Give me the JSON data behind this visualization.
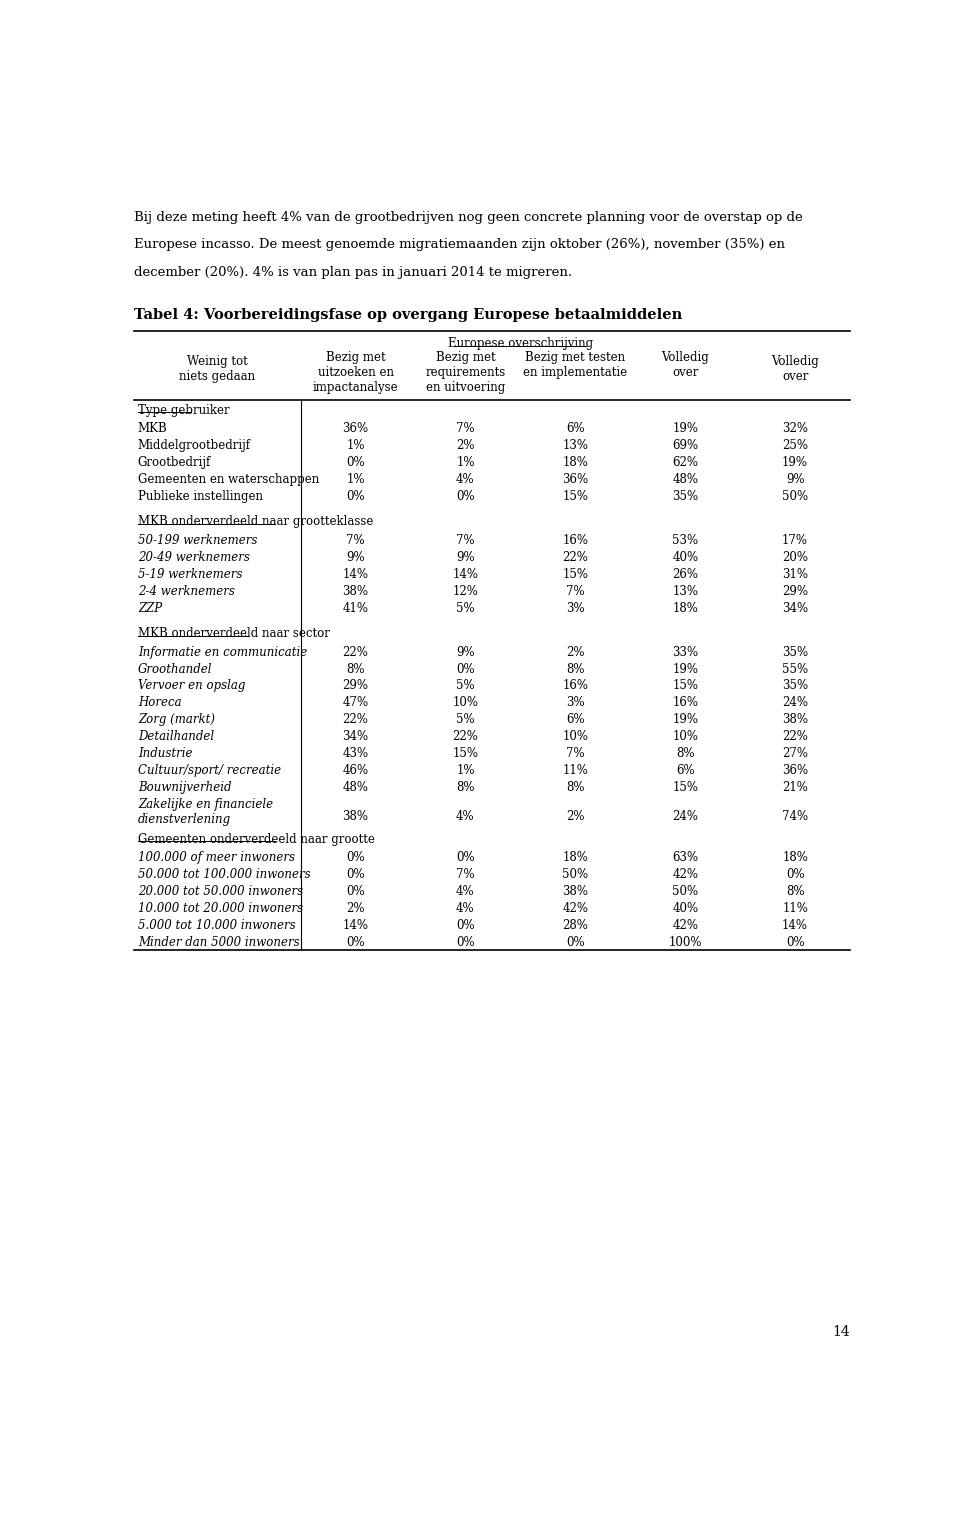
{
  "intro_text": [
    "Bij deze meting heeft 4% van de grootbedrijven nog geen concrete planning voor de overstap op de",
    "Europese incasso. De meest genoemde migratiemaanden zijn oktober (26%), november (35%) en",
    "december (20%). 4% is van plan pas in januari 2014 te migreren."
  ],
  "title": "Tabel 4: Voorbereidingsfase op overgang Europese betaalmiddelen",
  "col_headers": [
    "Weinig tot\nniets gedaan",
    "Bezig met\nuitzoeken en\nimpactanalyse",
    "Bezig met\nrequirements\nen uitvoering",
    "Bezig met testen\nen implementatie",
    "Volledig\nover"
  ],
  "subheader": "Europese overschrijving",
  "sections": [
    {
      "section_label": "Type gebruiker",
      "italic_label": false,
      "rows": [
        {
          "label": "MKB",
          "italic": false,
          "multiline": false,
          "values": [
            "36%",
            "7%",
            "6%",
            "19%",
            "32%"
          ]
        },
        {
          "label": "Middelgrootbedrijf",
          "italic": false,
          "multiline": false,
          "values": [
            "1%",
            "2%",
            "13%",
            "69%",
            "25%"
          ]
        },
        {
          "label": "Grootbedrijf",
          "italic": false,
          "multiline": false,
          "values": [
            "0%",
            "1%",
            "18%",
            "62%",
            "19%"
          ]
        },
        {
          "label": "Gemeenten en waterschappen",
          "italic": false,
          "multiline": false,
          "values": [
            "1%",
            "4%",
            "36%",
            "48%",
            "9%"
          ]
        },
        {
          "label": "Publieke instellingen",
          "italic": false,
          "multiline": false,
          "values": [
            "0%",
            "0%",
            "15%",
            "35%",
            "50%"
          ]
        }
      ]
    },
    {
      "section_label": "MKB onderverdeeld naar grootteklasse",
      "italic_label": false,
      "rows": [
        {
          "label": "50-199 werknemers",
          "italic": true,
          "multiline": false,
          "values": [
            "7%",
            "7%",
            "16%",
            "53%",
            "17%"
          ]
        },
        {
          "label": "20-49 werknemers",
          "italic": true,
          "multiline": false,
          "values": [
            "9%",
            "9%",
            "22%",
            "40%",
            "20%"
          ]
        },
        {
          "label": "5-19 werknemers",
          "italic": true,
          "multiline": false,
          "values": [
            "14%",
            "14%",
            "15%",
            "26%",
            "31%"
          ]
        },
        {
          "label": "2-4 werknemers",
          "italic": true,
          "multiline": false,
          "values": [
            "38%",
            "12%",
            "7%",
            "13%",
            "29%"
          ]
        },
        {
          "label": "ZZP",
          "italic": true,
          "multiline": false,
          "values": [
            "41%",
            "5%",
            "3%",
            "18%",
            "34%"
          ]
        }
      ]
    },
    {
      "section_label": "MKB onderverdeeld naar sector",
      "italic_label": false,
      "rows": [
        {
          "label": "Informatie en communicatie",
          "italic": true,
          "multiline": false,
          "values": [
            "22%",
            "9%",
            "2%",
            "33%",
            "35%"
          ]
        },
        {
          "label": "Groothandel",
          "italic": true,
          "multiline": false,
          "values": [
            "8%",
            "0%",
            "8%",
            "19%",
            "55%"
          ]
        },
        {
          "label": "Vervoer en opslag",
          "italic": true,
          "multiline": false,
          "values": [
            "29%",
            "5%",
            "16%",
            "15%",
            "35%"
          ]
        },
        {
          "label": "Horeca",
          "italic": true,
          "multiline": false,
          "values": [
            "47%",
            "10%",
            "3%",
            "16%",
            "24%"
          ]
        },
        {
          "label": "Zorg (markt)",
          "italic": true,
          "multiline": false,
          "values": [
            "22%",
            "5%",
            "6%",
            "19%",
            "38%"
          ]
        },
        {
          "label": "Detailhandel",
          "italic": true,
          "multiline": false,
          "values": [
            "34%",
            "22%",
            "10%",
            "10%",
            "22%"
          ]
        },
        {
          "label": "Industrie",
          "italic": true,
          "multiline": false,
          "values": [
            "43%",
            "15%",
            "7%",
            "8%",
            "27%"
          ]
        },
        {
          "label": "Cultuur/sport/ recreatie",
          "italic": true,
          "multiline": false,
          "values": [
            "46%",
            "1%",
            "11%",
            "6%",
            "36%"
          ]
        },
        {
          "label": "Bouwnijverheid",
          "italic": true,
          "multiline": false,
          "values": [
            "48%",
            "8%",
            "8%",
            "15%",
            "21%"
          ]
        },
        {
          "label": "Zakelijke en financiele\ndienstverlening",
          "italic": true,
          "multiline": true,
          "values": [
            "38%",
            "4%",
            "2%",
            "24%",
            "74%"
          ]
        }
      ]
    },
    {
      "section_label": "Gemeenten onderverdeeld naar grootte",
      "italic_label": false,
      "rows": [
        {
          "label": "100.000 of meer inwoners",
          "italic": true,
          "multiline": false,
          "values": [
            "0%",
            "0%",
            "18%",
            "63%",
            "18%"
          ]
        },
        {
          "label": "50.000 tot 100.000 inwoners",
          "italic": true,
          "multiline": false,
          "values": [
            "0%",
            "7%",
            "50%",
            "42%",
            "0%"
          ]
        },
        {
          "label": "20.000 tot 50.000 inwoners",
          "italic": true,
          "multiline": false,
          "values": [
            "0%",
            "4%",
            "38%",
            "50%",
            "8%"
          ]
        },
        {
          "label": "10.000 tot 20.000 inwoners",
          "italic": true,
          "multiline": false,
          "values": [
            "2%",
            "4%",
            "42%",
            "40%",
            "11%"
          ]
        },
        {
          "label": "5.000 tot 10.000 inwoners",
          "italic": true,
          "multiline": false,
          "values": [
            "14%",
            "0%",
            "28%",
            "42%",
            "14%"
          ]
        },
        {
          "label": "Minder dan 5000 inwoners",
          "italic": true,
          "multiline": false,
          "values": [
            "0%",
            "0%",
            "0%",
            "100%",
            "0%"
          ]
        }
      ]
    }
  ],
  "page_number": "14",
  "bg_color": "#ffffff",
  "text_color": "#000000",
  "font_size_intro": 9.5,
  "font_size_title": 10.5,
  "font_size_table": 8.5
}
